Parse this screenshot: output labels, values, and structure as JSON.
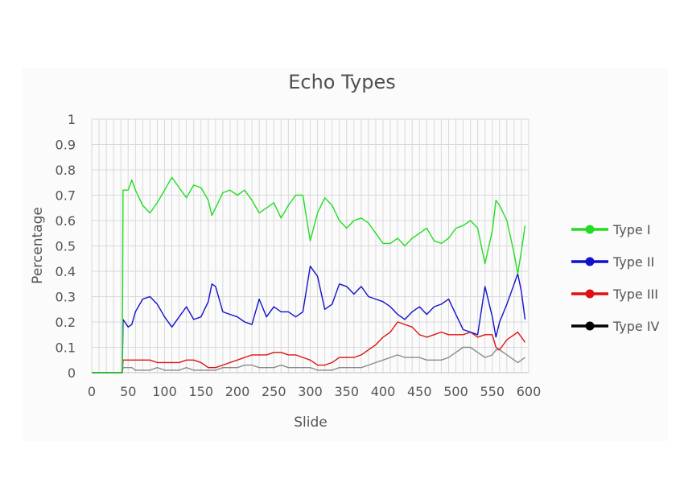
{
  "chart_data": {
    "type": "line",
    "title": "Echo Types",
    "xlabel": "Slide",
    "ylabel": "Percentage",
    "xlim": [
      0,
      600
    ],
    "ylim": [
      0,
      1
    ],
    "x_ticks": [
      "0",
      "50",
      "100",
      "150",
      "200",
      "250",
      "300",
      "350",
      "400",
      "450",
      "500",
      "550",
      "600"
    ],
    "y_ticks": [
      "0",
      "0.1",
      "0.2",
      "0.3",
      "0.4",
      "0.5",
      "0.6",
      "0.7",
      "0.8",
      "0.9",
      "1"
    ],
    "grid": true,
    "legend_position": "right",
    "x": [
      0,
      42,
      43,
      50,
      55,
      60,
      70,
      80,
      90,
      100,
      110,
      120,
      130,
      140,
      150,
      160,
      165,
      170,
      180,
      190,
      200,
      210,
      220,
      230,
      240,
      250,
      260,
      270,
      280,
      290,
      300,
      310,
      320,
      330,
      340,
      350,
      360,
      370,
      380,
      390,
      400,
      410,
      420,
      430,
      440,
      450,
      460,
      470,
      480,
      490,
      500,
      510,
      520,
      530,
      540,
      550,
      555,
      560,
      570,
      580,
      585,
      590,
      595
    ],
    "series": [
      {
        "name": "Type I",
        "color": "#22dd22",
        "values": [
          0,
          0,
          0.72,
          0.72,
          0.76,
          0.72,
          0.66,
          0.63,
          0.67,
          0.72,
          0.77,
          0.73,
          0.69,
          0.74,
          0.73,
          0.68,
          0.62,
          0.65,
          0.71,
          0.72,
          0.7,
          0.72,
          0.68,
          0.63,
          0.65,
          0.67,
          0.61,
          0.66,
          0.7,
          0.7,
          0.52,
          0.63,
          0.69,
          0.66,
          0.6,
          0.57,
          0.6,
          0.61,
          0.59,
          0.55,
          0.51,
          0.51,
          0.53,
          0.5,
          0.53,
          0.55,
          0.57,
          0.52,
          0.51,
          0.53,
          0.57,
          0.58,
          0.6,
          0.57,
          0.43,
          0.56,
          0.68,
          0.66,
          0.6,
          0.47,
          0.39,
          0.48,
          0.58
        ]
      },
      {
        "name": "Type II",
        "color": "#1111cc",
        "values": [
          0,
          0,
          0.21,
          0.18,
          0.19,
          0.24,
          0.29,
          0.3,
          0.27,
          0.22,
          0.18,
          0.22,
          0.26,
          0.21,
          0.22,
          0.28,
          0.35,
          0.34,
          0.24,
          0.23,
          0.22,
          0.2,
          0.19,
          0.29,
          0.22,
          0.26,
          0.24,
          0.24,
          0.22,
          0.24,
          0.42,
          0.38,
          0.25,
          0.27,
          0.35,
          0.34,
          0.31,
          0.34,
          0.3,
          0.29,
          0.28,
          0.26,
          0.23,
          0.21,
          0.24,
          0.26,
          0.23,
          0.26,
          0.27,
          0.29,
          0.23,
          0.17,
          0.16,
          0.15,
          0.34,
          0.22,
          0.14,
          0.2,
          0.27,
          0.35,
          0.39,
          0.32,
          0.21
        ]
      },
      {
        "name": "Type III",
        "color": "#dd1111",
        "values": [
          0,
          0,
          0.05,
          0.05,
          0.05,
          0.05,
          0.05,
          0.05,
          0.04,
          0.04,
          0.04,
          0.04,
          0.05,
          0.05,
          0.04,
          0.02,
          0.02,
          0.02,
          0.03,
          0.04,
          0.05,
          0.06,
          0.07,
          0.07,
          0.07,
          0.08,
          0.08,
          0.07,
          0.07,
          0.06,
          0.05,
          0.03,
          0.03,
          0.04,
          0.06,
          0.06,
          0.06,
          0.07,
          0.09,
          0.11,
          0.14,
          0.16,
          0.2,
          0.19,
          0.18,
          0.15,
          0.14,
          0.15,
          0.16,
          0.15,
          0.15,
          0.15,
          0.16,
          0.14,
          0.15,
          0.15,
          0.1,
          0.09,
          0.13,
          0.15,
          0.16,
          0.14,
          0.12
        ]
      },
      {
        "name": "Type IV",
        "color": "#8a8a8a",
        "values": [
          0,
          0,
          0.02,
          0.02,
          0.02,
          0.01,
          0.01,
          0.01,
          0.02,
          0.01,
          0.01,
          0.01,
          0.02,
          0.01,
          0.01,
          0.01,
          0.01,
          0.01,
          0.02,
          0.02,
          0.02,
          0.03,
          0.03,
          0.02,
          0.02,
          0.02,
          0.03,
          0.02,
          0.02,
          0.02,
          0.02,
          0.01,
          0.01,
          0.01,
          0.02,
          0.02,
          0.02,
          0.02,
          0.03,
          0.04,
          0.05,
          0.06,
          0.07,
          0.06,
          0.06,
          0.06,
          0.05,
          0.05,
          0.05,
          0.06,
          0.08,
          0.1,
          0.1,
          0.08,
          0.06,
          0.07,
          0.09,
          0.09,
          0.07,
          0.05,
          0.04,
          0.05,
          0.06
        ]
      }
    ],
    "legend": [
      {
        "label": "Type I",
        "color": "#22dd22"
      },
      {
        "label": "Type II",
        "color": "#1111cc"
      },
      {
        "label": "Type III",
        "color": "#dd1111"
      },
      {
        "label": "Type IV",
        "color": "#000000"
      }
    ]
  }
}
